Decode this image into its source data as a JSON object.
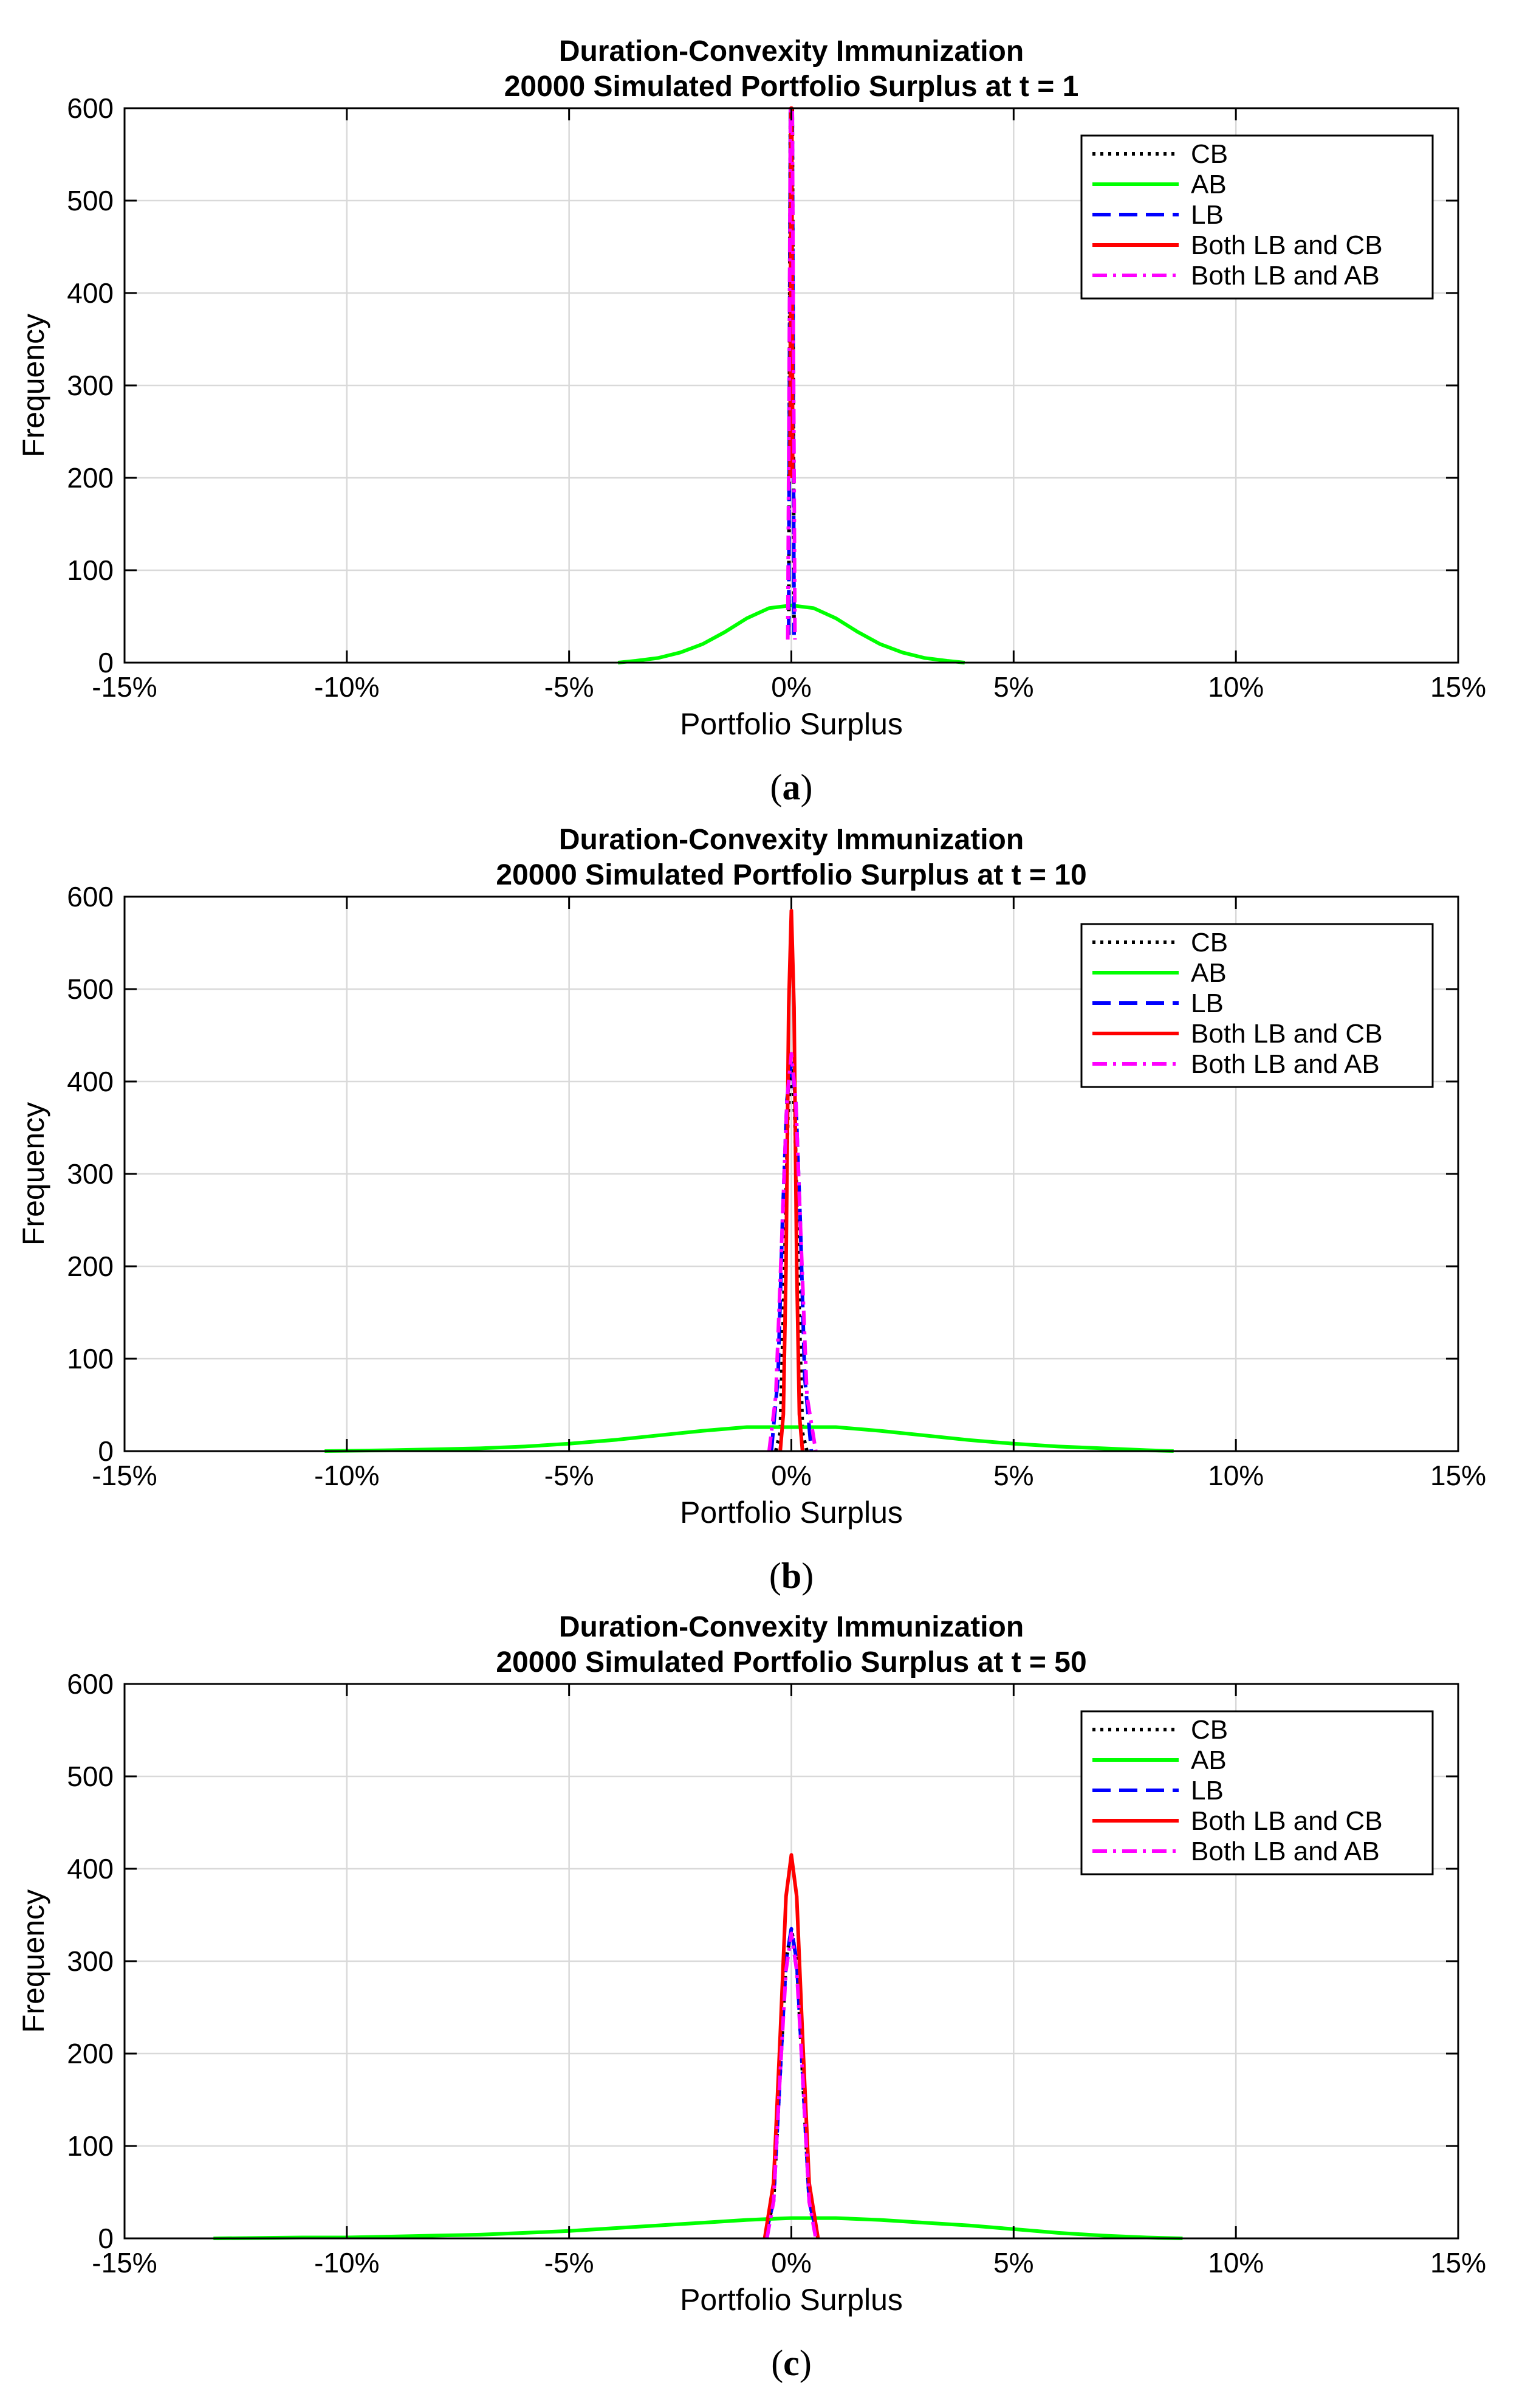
{
  "chart_data": [
    {
      "panel": "a",
      "type": "line",
      "title_line1": "Duration-Convexity Immunization",
      "title_line2": "20000 Simulated Portfolio Surplus at t = 1",
      "xlabel": "Portfolio Surplus",
      "ylabel": "Frequency",
      "caption_letter": "a",
      "xlim": [
        -15,
        15
      ],
      "ylim": [
        0,
        600
      ],
      "xticks": [
        -15,
        -10,
        -5,
        0,
        5,
        10,
        15
      ],
      "xtick_labels": [
        "-15%",
        "-10%",
        "-5%",
        "0%",
        "5%",
        "10%",
        "15%"
      ],
      "yticks": [
        0,
        100,
        200,
        300,
        400,
        500,
        600
      ],
      "ytick_labels": [
        "0",
        "100",
        "200",
        "300",
        "400",
        "500",
        "600"
      ],
      "grid": true,
      "legend_position": "top-right",
      "series": [
        {
          "name": "CB",
          "color": "#000000",
          "style": "dotted",
          "x": [
            -0.06,
            -0.04,
            -0.02,
            0,
            0.02,
            0.04,
            0.06
          ],
          "y": [
            30,
            350,
            600,
            600,
            600,
            350,
            30
          ]
        },
        {
          "name": "AB",
          "color": "#00ff00",
          "style": "solid",
          "x": [
            -3.9,
            -3.5,
            -3,
            -2.5,
            -2,
            -1.5,
            -1,
            -0.5,
            0,
            0.5,
            1,
            1.5,
            2,
            2.5,
            3,
            3.5,
            3.9
          ],
          "y": [
            0,
            2,
            5,
            11,
            20,
            33,
            48,
            59,
            62,
            59,
            48,
            33,
            20,
            11,
            5,
            2,
            0
          ]
        },
        {
          "name": "LB",
          "color": "#0000ff",
          "style": "dashed",
          "x": [
            -0.06,
            -0.04,
            -0.02,
            0,
            0.02,
            0.04,
            0.06
          ],
          "y": [
            30,
            350,
            600,
            600,
            600,
            350,
            30
          ]
        },
        {
          "name": "Both LB and CB",
          "color": "#ff0000",
          "style": "solid",
          "x": [
            -0.03,
            -0.01,
            0,
            0.01,
            0.03
          ],
          "y": [
            200,
            600,
            600,
            600,
            200
          ]
        },
        {
          "name": "Both LB and AB",
          "color": "#ff00ff",
          "style": "dashdot",
          "x": [
            -0.08,
            -0.05,
            -0.02,
            0,
            0.02,
            0.05,
            0.08
          ],
          "y": [
            25,
            300,
            600,
            600,
            600,
            300,
            25
          ]
        }
      ]
    },
    {
      "panel": "b",
      "type": "line",
      "title_line1": "Duration-Convexity Immunization",
      "title_line2": "20000 Simulated Portfolio Surplus at t = 10",
      "xlabel": "Portfolio Surplus",
      "ylabel": "Frequency",
      "caption_letter": "b",
      "xlim": [
        -15,
        15
      ],
      "ylim": [
        0,
        600
      ],
      "xticks": [
        -15,
        -10,
        -5,
        0,
        5,
        10,
        15
      ],
      "xtick_labels": [
        "-15%",
        "-10%",
        "-5%",
        "0%",
        "5%",
        "10%",
        "15%"
      ],
      "yticks": [
        0,
        100,
        200,
        300,
        400,
        500,
        600
      ],
      "ytick_labels": [
        "0",
        "100",
        "200",
        "300",
        "400",
        "500",
        "600"
      ],
      "grid": true,
      "legend_position": "top-right",
      "series": [
        {
          "name": "CB",
          "color": "#000000",
          "style": "dotted",
          "x": [
            -0.35,
            -0.25,
            -0.15,
            -0.08,
            0,
            0.08,
            0.15,
            0.25,
            0.35
          ],
          "y": [
            0,
            20,
            200,
            360,
            420,
            360,
            200,
            20,
            0
          ]
        },
        {
          "name": "AB",
          "color": "#00ff00",
          "style": "solid",
          "x": [
            -10.5,
            -9,
            -8,
            -7,
            -6,
            -5,
            -4,
            -3,
            -2,
            -1,
            0,
            1,
            2,
            3,
            4,
            5,
            6,
            7,
            8,
            8.6
          ],
          "y": [
            0,
            1,
            2,
            3,
            5,
            8,
            12,
            17,
            22,
            26,
            26,
            26,
            22,
            17,
            12,
            8,
            5,
            3,
            1,
            0
          ]
        },
        {
          "name": "LB",
          "color": "#0000ff",
          "style": "dashed",
          "x": [
            -0.45,
            -0.3,
            -0.2,
            -0.1,
            0,
            0.1,
            0.2,
            0.3,
            0.45
          ],
          "y": [
            0,
            80,
            250,
            380,
            420,
            380,
            250,
            80,
            0
          ]
        },
        {
          "name": "Both LB and CB",
          "color": "#ff0000",
          "style": "solid",
          "x": [
            -0.25,
            -0.18,
            -0.12,
            -0.06,
            0,
            0.06,
            0.12,
            0.18,
            0.25
          ],
          "y": [
            0,
            40,
            200,
            480,
            585,
            480,
            200,
            40,
            0
          ]
        },
        {
          "name": "Both LB and AB",
          "color": "#ff00ff",
          "style": "dashdot",
          "x": [
            -0.5,
            -0.35,
            -0.2,
            -0.1,
            0,
            0.1,
            0.2,
            0.35,
            0.55
          ],
          "y": [
            0,
            60,
            250,
            380,
            430,
            380,
            250,
            60,
            0
          ]
        }
      ]
    },
    {
      "panel": "c",
      "type": "line",
      "title_line1": "Duration-Convexity Immunization",
      "title_line2": "20000 Simulated Portfolio Surplus at t = 50",
      "xlabel": "Portfolio Surplus",
      "ylabel": "Frequency",
      "caption_letter": "c",
      "xlim": [
        -15,
        15
      ],
      "ylim": [
        0,
        600
      ],
      "xticks": [
        -15,
        -10,
        -5,
        0,
        5,
        10,
        15
      ],
      "xtick_labels": [
        "-15%",
        "-10%",
        "-5%",
        "0%",
        "5%",
        "10%",
        "15%"
      ],
      "yticks": [
        0,
        100,
        200,
        300,
        400,
        500,
        600
      ],
      "ytick_labels": [
        "0",
        "100",
        "200",
        "300",
        "400",
        "500",
        "600"
      ],
      "grid": true,
      "legend_position": "top-right",
      "series": [
        {
          "name": "CB",
          "color": "#000000",
          "style": "dotted",
          "x": [
            -0.6,
            -0.4,
            -0.25,
            -0.12,
            0,
            0.12,
            0.25,
            0.4,
            0.6
          ],
          "y": [
            0,
            40,
            180,
            300,
            335,
            300,
            180,
            40,
            0
          ]
        },
        {
          "name": "AB",
          "color": "#00ff00",
          "style": "solid",
          "x": [
            -13,
            -11,
            -10,
            -9,
            -8,
            -7,
            -6,
            -5,
            -4,
            -3,
            -2,
            -1,
            0,
            1,
            2,
            3,
            4,
            5,
            6,
            7,
            8,
            8.8
          ],
          "y": [
            0,
            1,
            1,
            2,
            3,
            4,
            6,
            8,
            11,
            14,
            17,
            20,
            22,
            22,
            20,
            17,
            14,
            10,
            6,
            3,
            1,
            0
          ]
        },
        {
          "name": "LB",
          "color": "#0000ff",
          "style": "dashed",
          "x": [
            -0.6,
            -0.4,
            -0.25,
            -0.12,
            0,
            0.12,
            0.25,
            0.4,
            0.6
          ],
          "y": [
            0,
            40,
            180,
            300,
            335,
            300,
            180,
            40,
            0
          ]
        },
        {
          "name": "Both LB and CB",
          "color": "#ff0000",
          "style": "solid",
          "x": [
            -0.6,
            -0.4,
            -0.25,
            -0.12,
            0,
            0.12,
            0.25,
            0.4,
            0.6
          ],
          "y": [
            0,
            60,
            220,
            370,
            415,
            370,
            220,
            60,
            0
          ]
        },
        {
          "name": "Both LB and AB",
          "color": "#ff00ff",
          "style": "dashdot",
          "x": [
            -0.55,
            -0.4,
            -0.25,
            -0.12,
            0,
            0.12,
            0.25,
            0.4,
            0.55
          ],
          "y": [
            0,
            40,
            180,
            290,
            330,
            290,
            180,
            40,
            0
          ]
        }
      ]
    }
  ]
}
